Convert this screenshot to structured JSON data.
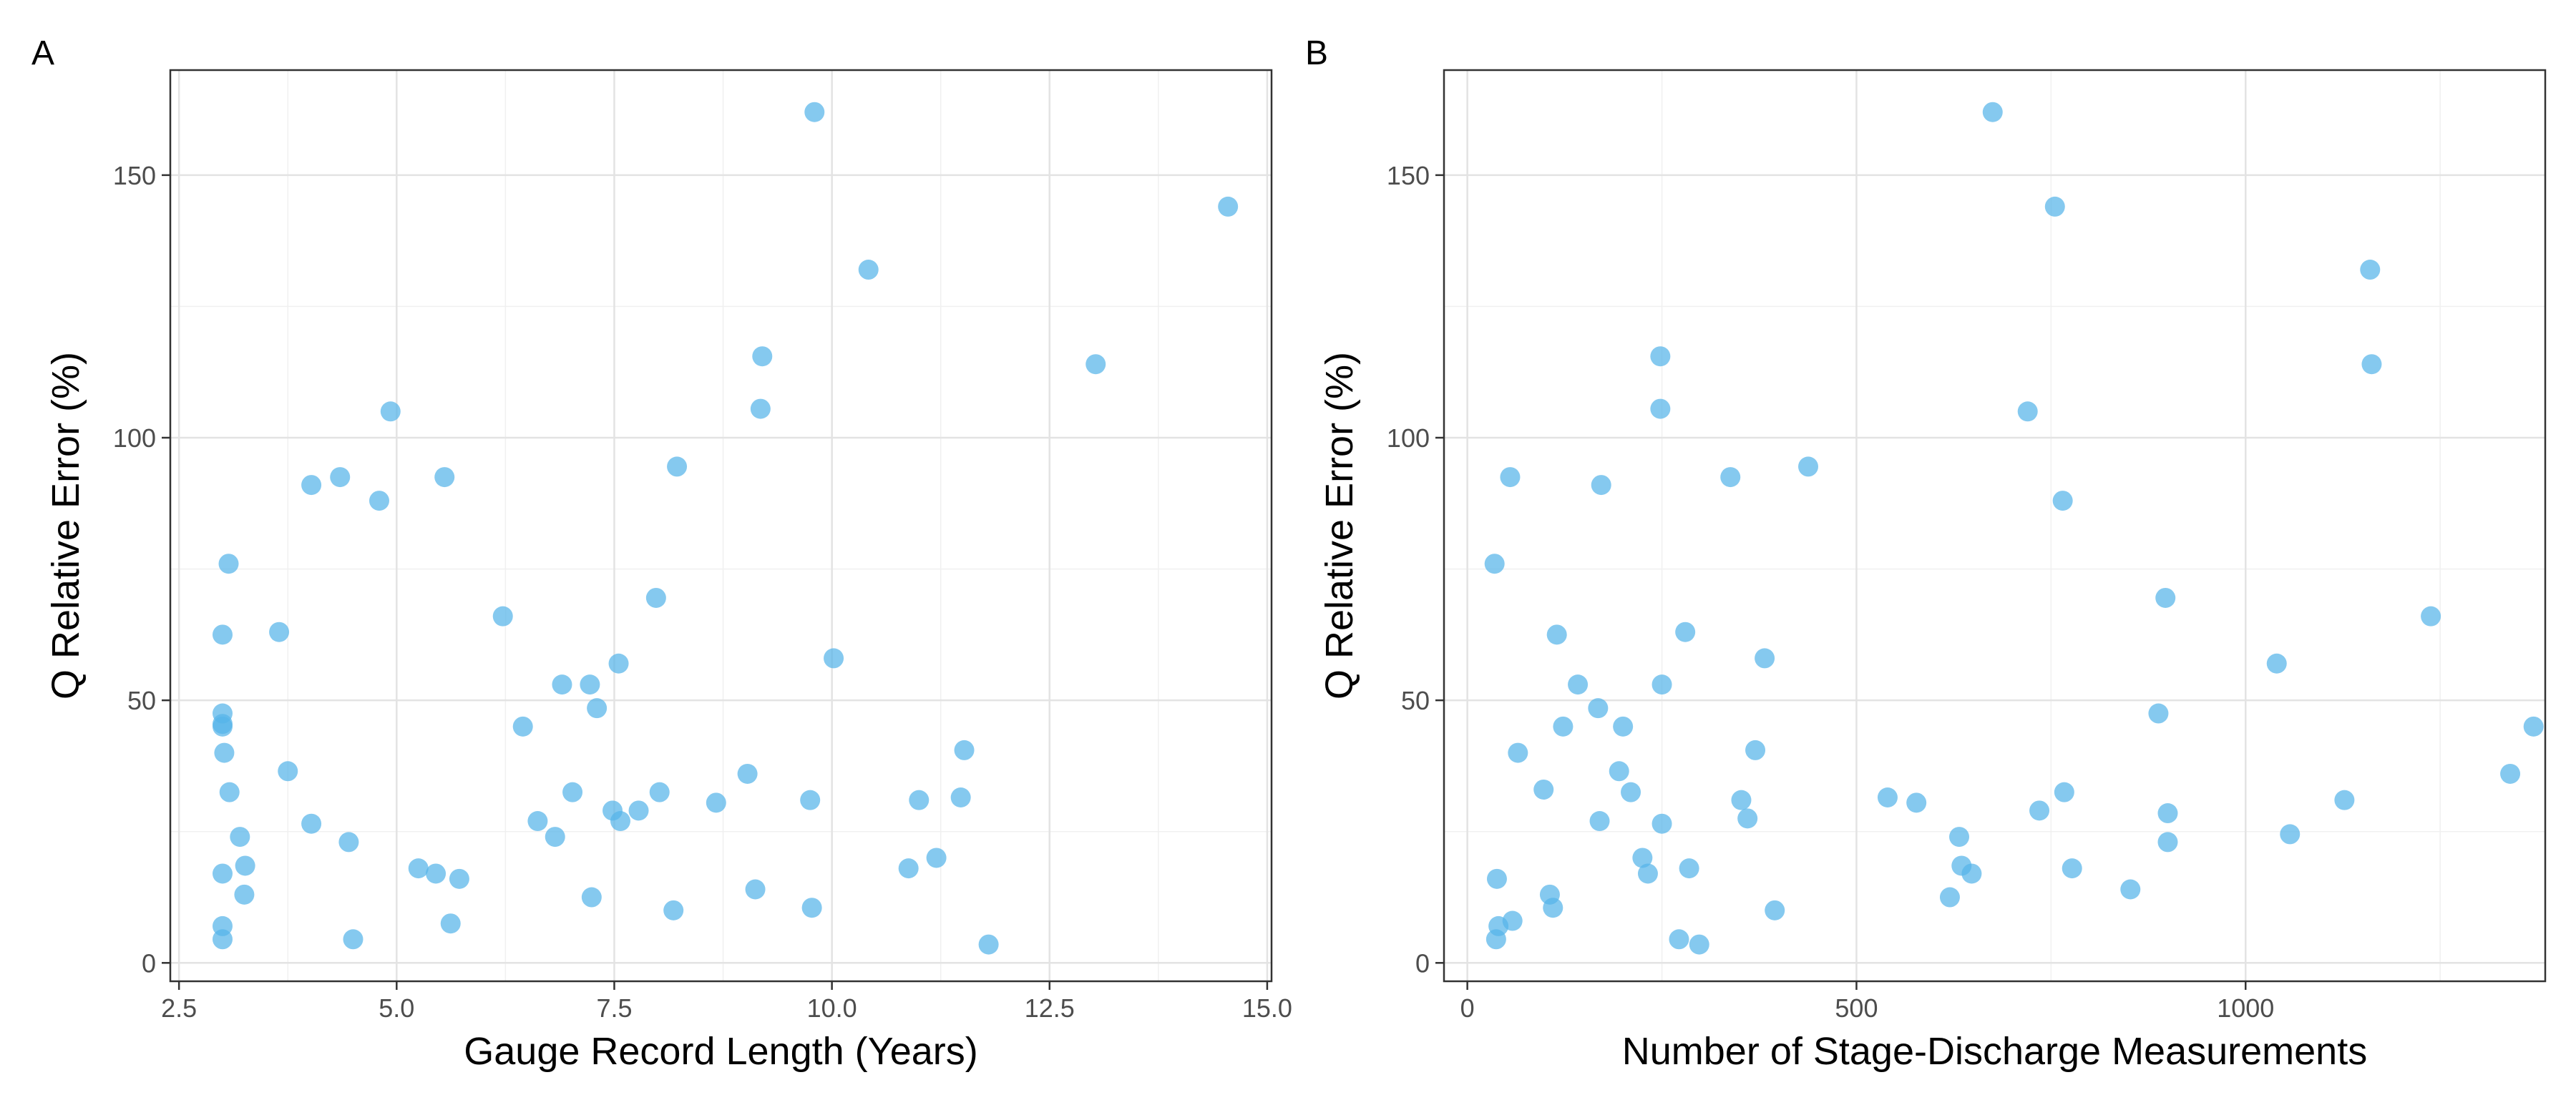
{
  "chart_data": [
    {
      "type": "scatter",
      "panel": "A",
      "title": "",
      "xlabel": "Gauge Record Length (Years)",
      "ylabel": "Q Relative Error (%)",
      "xlim": [
        2.4,
        15.05
      ],
      "ylim": [
        -3.5,
        170
      ],
      "xticks": [
        2.5,
        5.0,
        7.5,
        10.0,
        12.5,
        15.0
      ],
      "xtick_labels": [
        "2.5",
        "5.0",
        "7.5",
        "10.0",
        "12.5",
        "15.0"
      ],
      "yticks": [
        0,
        50,
        100,
        150
      ],
      "ytick_labels": [
        "0",
        "50",
        "100",
        "150"
      ],
      "grid": true,
      "marker_color": "#56B4E9",
      "points": [
        {
          "x": 3.0,
          "y": 4.5
        },
        {
          "x": 3.0,
          "y": 7.0
        },
        {
          "x": 3.0,
          "y": 17.0
        },
        {
          "x": 3.02,
          "y": 40.0
        },
        {
          "x": 3.0,
          "y": 45.0
        },
        {
          "x": 3.0,
          "y": 45.5
        },
        {
          "x": 3.0,
          "y": 47.5
        },
        {
          "x": 3.0,
          "y": 62.5
        },
        {
          "x": 3.07,
          "y": 76.0
        },
        {
          "x": 3.08,
          "y": 32.5
        },
        {
          "x": 3.2,
          "y": 24.0
        },
        {
          "x": 3.25,
          "y": 13.0
        },
        {
          "x": 3.26,
          "y": 18.5
        },
        {
          "x": 3.65,
          "y": 63.0
        },
        {
          "x": 3.75,
          "y": 36.5
        },
        {
          "x": 4.02,
          "y": 26.5
        },
        {
          "x": 4.02,
          "y": 91.0
        },
        {
          "x": 4.35,
          "y": 92.5
        },
        {
          "x": 4.45,
          "y": 23.0
        },
        {
          "x": 4.5,
          "y": 4.5
        },
        {
          "x": 4.8,
          "y": 88.0
        },
        {
          "x": 4.93,
          "y": 105.0
        },
        {
          "x": 5.25,
          "y": 18.0
        },
        {
          "x": 5.45,
          "y": 17.0
        },
        {
          "x": 5.55,
          "y": 92.5
        },
        {
          "x": 5.62,
          "y": 7.5
        },
        {
          "x": 5.72,
          "y": 16.0
        },
        {
          "x": 6.22,
          "y": 66.0
        },
        {
          "x": 6.45,
          "y": 45.0
        },
        {
          "x": 6.62,
          "y": 27.0
        },
        {
          "x": 6.82,
          "y": 24.0
        },
        {
          "x": 6.9,
          "y": 53.0
        },
        {
          "x": 7.02,
          "y": 32.5
        },
        {
          "x": 7.22,
          "y": 53.0
        },
        {
          "x": 7.24,
          "y": 12.5
        },
        {
          "x": 7.3,
          "y": 48.5
        },
        {
          "x": 7.48,
          "y": 29.0
        },
        {
          "x": 7.55,
          "y": 57.0
        },
        {
          "x": 7.57,
          "y": 27.0
        },
        {
          "x": 7.78,
          "y": 29.0
        },
        {
          "x": 7.98,
          "y": 69.5
        },
        {
          "x": 8.02,
          "y": 32.5
        },
        {
          "x": 8.18,
          "y": 10.0
        },
        {
          "x": 8.22,
          "y": 94.5
        },
        {
          "x": 8.67,
          "y": 30.5
        },
        {
          "x": 9.03,
          "y": 36.0
        },
        {
          "x": 9.12,
          "y": 14.0
        },
        {
          "x": 9.18,
          "y": 105.5
        },
        {
          "x": 9.2,
          "y": 115.5
        },
        {
          "x": 9.75,
          "y": 31.0
        },
        {
          "x": 9.77,
          "y": 10.5
        },
        {
          "x": 9.8,
          "y": 162.0
        },
        {
          "x": 10.02,
          "y": 58.0
        },
        {
          "x": 10.42,
          "y": 132.0
        },
        {
          "x": 10.88,
          "y": 18.0
        },
        {
          "x": 11.0,
          "y": 31.0
        },
        {
          "x": 11.2,
          "y": 20.0
        },
        {
          "x": 11.48,
          "y": 31.5
        },
        {
          "x": 11.52,
          "y": 40.5
        },
        {
          "x": 11.8,
          "y": 3.5
        },
        {
          "x": 13.03,
          "y": 114.0
        },
        {
          "x": 14.55,
          "y": 144.0
        }
      ]
    },
    {
      "type": "scatter",
      "panel": "B",
      "title": "",
      "xlabel": "Number of Stage-Discharge Measurements",
      "ylabel": "Q Relative Error (%)",
      "xlim": [
        -30,
        1385
      ],
      "ylim": [
        -3.5,
        170
      ],
      "xticks": [
        0,
        500,
        1000
      ],
      "xtick_labels": [
        "0",
        "500",
        "1000"
      ],
      "yticks": [
        0,
        50,
        100,
        150
      ],
      "ytick_labels": [
        "0",
        "50",
        "100",
        "150"
      ],
      "grid": true,
      "marker_color": "#56B4E9",
      "points": [
        {
          "x": 37,
          "y": 4.5
        },
        {
          "x": 40,
          "y": 7.0
        },
        {
          "x": 38,
          "y": 16.0
        },
        {
          "x": 35,
          "y": 76.0
        },
        {
          "x": 55,
          "y": 92.5
        },
        {
          "x": 58,
          "y": 8.0
        },
        {
          "x": 65,
          "y": 40.0
        },
        {
          "x": 98,
          "y": 33.0
        },
        {
          "x": 106,
          "y": 13.0
        },
        {
          "x": 110,
          "y": 10.5
        },
        {
          "x": 115,
          "y": 62.5
        },
        {
          "x": 123,
          "y": 45.0
        },
        {
          "x": 142,
          "y": 53.0
        },
        {
          "x": 168,
          "y": 48.5
        },
        {
          "x": 170,
          "y": 27.0
        },
        {
          "x": 172,
          "y": 91.0
        },
        {
          "x": 195,
          "y": 36.5
        },
        {
          "x": 200,
          "y": 45.0
        },
        {
          "x": 210,
          "y": 32.5
        },
        {
          "x": 225,
          "y": 20.0
        },
        {
          "x": 232,
          "y": 17.0
        },
        {
          "x": 248,
          "y": 115.5
        },
        {
          "x": 248,
          "y": 105.5
        },
        {
          "x": 250,
          "y": 53.0
        },
        {
          "x": 250,
          "y": 26.5
        },
        {
          "x": 272,
          "y": 4.5
        },
        {
          "x": 280,
          "y": 63.0
        },
        {
          "x": 285,
          "y": 18.0
        },
        {
          "x": 298,
          "y": 3.5
        },
        {
          "x": 338,
          "y": 92.5
        },
        {
          "x": 352,
          "y": 31.0
        },
        {
          "x": 360,
          "y": 27.5
        },
        {
          "x": 370,
          "y": 40.5
        },
        {
          "x": 382,
          "y": 58.0
        },
        {
          "x": 395,
          "y": 10.0
        },
        {
          "x": 438,
          "y": 94.5
        },
        {
          "x": 540,
          "y": 31.5
        },
        {
          "x": 577,
          "y": 30.5
        },
        {
          "x": 620,
          "y": 12.5
        },
        {
          "x": 632,
          "y": 24.0
        },
        {
          "x": 635,
          "y": 18.5
        },
        {
          "x": 648,
          "y": 17.0
        },
        {
          "x": 675,
          "y": 162.0
        },
        {
          "x": 720,
          "y": 105.0
        },
        {
          "x": 735,
          "y": 29.0
        },
        {
          "x": 755,
          "y": 144.0
        },
        {
          "x": 765,
          "y": 88.0
        },
        {
          "x": 767,
          "y": 32.5
        },
        {
          "x": 777,
          "y": 18.0
        },
        {
          "x": 852,
          "y": 14.0
        },
        {
          "x": 888,
          "y": 47.5
        },
        {
          "x": 897,
          "y": 69.5
        },
        {
          "x": 900,
          "y": 28.5
        },
        {
          "x": 900,
          "y": 23.0
        },
        {
          "x": 1040,
          "y": 57.0
        },
        {
          "x": 1057,
          "y": 24.5
        },
        {
          "x": 1127,
          "y": 31.0
        },
        {
          "x": 1160,
          "y": 132.0
        },
        {
          "x": 1162,
          "y": 114.0
        },
        {
          "x": 1238,
          "y": 66.0
        },
        {
          "x": 1340,
          "y": 36.0
        },
        {
          "x": 1370,
          "y": 45.0
        }
      ]
    }
  ]
}
